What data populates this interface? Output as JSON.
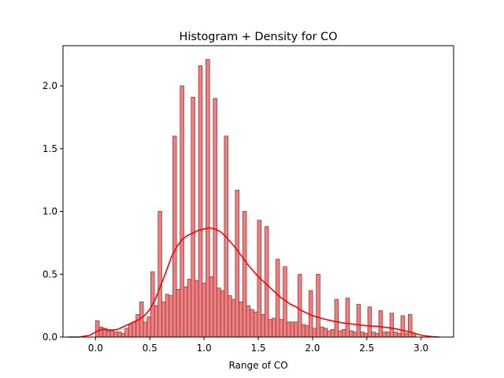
{
  "chart_data": {
    "type": "bar",
    "title": "Histogram + Density for CO",
    "xlabel": "Range of CO",
    "ylabel": "",
    "xlim": [
      -0.3,
      3.3
    ],
    "ylim": [
      0,
      2.32
    ],
    "xticks": [
      "0.0",
      "0.5",
      "1.0",
      "1.5",
      "2.0",
      "2.5",
      "3.0"
    ],
    "xtick_values": [
      0,
      0.5,
      1.0,
      1.5,
      2.0,
      2.5,
      3.0
    ],
    "yticks": [
      "0.0",
      "0.5",
      "1.0",
      "1.5",
      "2.0"
    ],
    "ytick_values": [
      0,
      0.5,
      1.0,
      1.5,
      2.0
    ],
    "grid": false,
    "bar_edges": [
      0.0,
      2.95
    ],
    "bar_values": [
      0.13,
      0.08,
      0.07,
      0.05,
      0.05,
      0.04,
      0.04,
      0.03,
      0.07,
      0.1,
      0.12,
      0.18,
      0.28,
      0.12,
      0.16,
      0.52,
      0.25,
      1.0,
      0.28,
      0.34,
      0.33,
      1.6,
      0.38,
      2.0,
      0.4,
      0.46,
      1.91,
      0.45,
      2.16,
      0.43,
      2.21,
      0.48,
      1.9,
      0.39,
      0.37,
      1.6,
      0.33,
      0.3,
      1.17,
      0.28,
      1.0,
      0.25,
      0.22,
      0.2,
      0.93,
      0.18,
      0.88,
      0.14,
      0.15,
      0.62,
      0.14,
      0.56,
      0.12,
      0.12,
      0.12,
      0.5,
      0.1,
      0.09,
      0.37,
      0.07,
      0.5,
      0.08,
      0.07,
      0.05,
      0.06,
      0.3,
      0.05,
      0.06,
      0.31,
      0.05,
      0.04,
      0.26,
      0.04,
      0.03,
      0.24,
      0.04,
      0.03,
      0.21,
      0.04,
      0.04,
      0.19,
      0.04,
      0.03,
      0.17,
      0.03,
      0.18,
      0.03
    ],
    "bar_color": "#f08080",
    "bar_edge_color": "#8b3a3a",
    "density": {
      "name": "",
      "color": "#ff0000",
      "x": [
        -0.25,
        -0.15,
        -0.05,
        0.0,
        0.05,
        0.1,
        0.15,
        0.2,
        0.25,
        0.3,
        0.35,
        0.4,
        0.45,
        0.5,
        0.55,
        0.6,
        0.65,
        0.7,
        0.75,
        0.8,
        0.85,
        0.9,
        0.95,
        1.0,
        1.05,
        1.1,
        1.15,
        1.2,
        1.25,
        1.3,
        1.35,
        1.4,
        1.45,
        1.5,
        1.55,
        1.6,
        1.65,
        1.7,
        1.75,
        1.8,
        1.85,
        1.9,
        1.95,
        2.0,
        2.1,
        2.2,
        2.3,
        2.4,
        2.5,
        2.6,
        2.7,
        2.8,
        2.9,
        3.0,
        3.1,
        3.17
      ],
      "y": [
        0.0,
        0.0,
        0.015,
        0.04,
        0.06,
        0.06,
        0.055,
        0.06,
        0.08,
        0.1,
        0.12,
        0.14,
        0.17,
        0.22,
        0.3,
        0.41,
        0.52,
        0.64,
        0.72,
        0.78,
        0.81,
        0.83,
        0.85,
        0.86,
        0.87,
        0.86,
        0.84,
        0.8,
        0.75,
        0.7,
        0.64,
        0.58,
        0.53,
        0.48,
        0.44,
        0.4,
        0.36,
        0.32,
        0.29,
        0.26,
        0.24,
        0.21,
        0.19,
        0.17,
        0.145,
        0.125,
        0.11,
        0.1,
        0.09,
        0.085,
        0.075,
        0.06,
        0.04,
        0.015,
        0.003,
        0.0
      ]
    }
  }
}
